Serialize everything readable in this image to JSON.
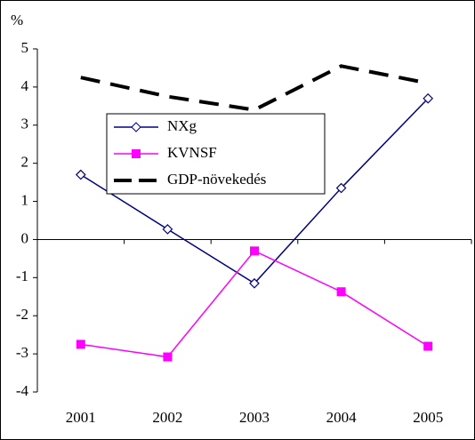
{
  "chart_data": {
    "type": "line",
    "y_label": "%",
    "categories": [
      "2001",
      "2002",
      "2003",
      "2004",
      "2005"
    ],
    "series": [
      {
        "name": "NXg",
        "color": "#000080",
        "marker": "diamond",
        "dash": "solid",
        "values": [
          1.7,
          0.27,
          -1.15,
          1.35,
          3.7
        ]
      },
      {
        "name": "KVNSF",
        "color": "#ff00ff",
        "marker": "square",
        "dash": "solid",
        "values": [
          -2.75,
          -3.08,
          -0.3,
          -1.37,
          -2.8
        ]
      },
      {
        "name": "GDP-növekedés",
        "color": "#000000",
        "marker": "none",
        "dash": "dashed",
        "values": [
          4.25,
          3.75,
          3.4,
          4.55,
          4.1
        ]
      }
    ],
    "ylim": [
      -4,
      5
    ],
    "yticks": [
      -4,
      -3,
      -2,
      -1,
      0,
      1,
      2,
      3,
      4,
      5
    ],
    "grid": false,
    "legend": "upper-left"
  }
}
